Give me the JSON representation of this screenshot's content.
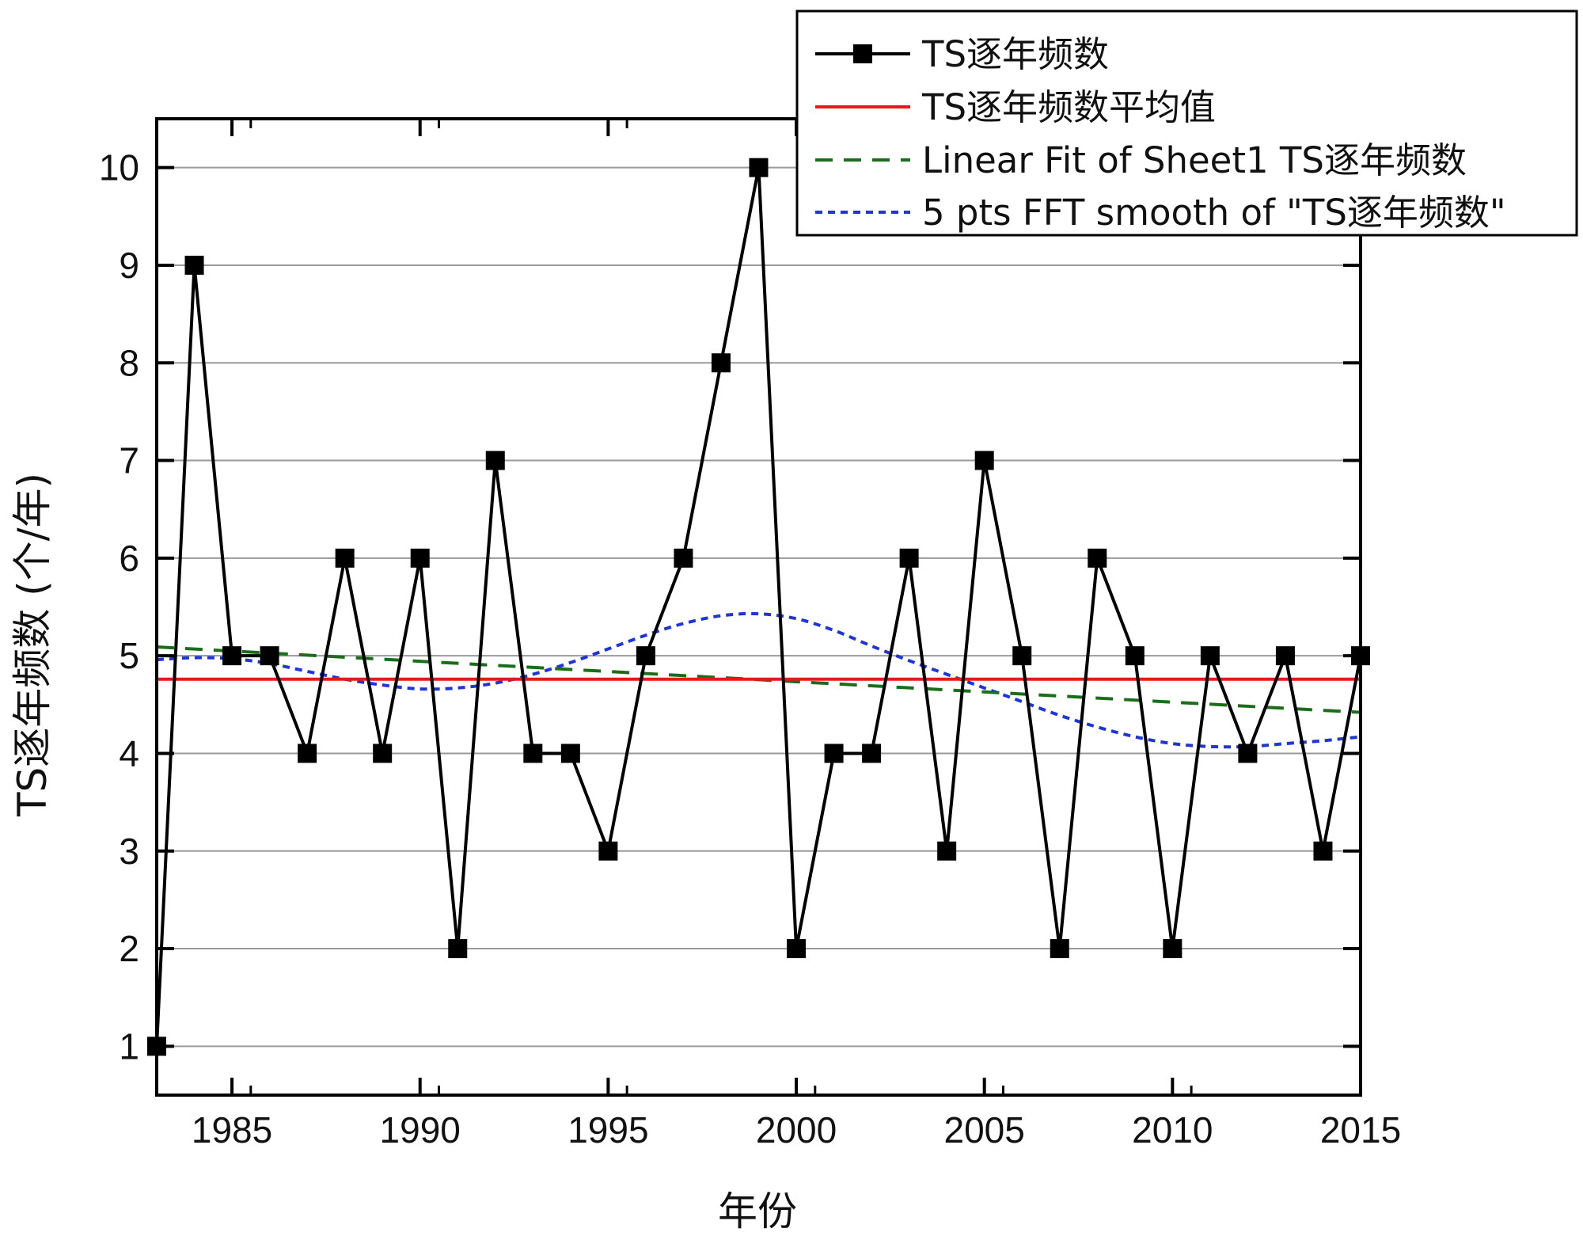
{
  "chart_data": {
    "type": "line",
    "title": "",
    "xlabel": "年份",
    "ylabel": "TS逐年频数 (个/年)",
    "xlim": [
      1983,
      2015
    ],
    "ylim": [
      0.5,
      10.5
    ],
    "xticks": [
      1985,
      1990,
      1995,
      2000,
      2005,
      2010,
      2015
    ],
    "xtick_labels": [
      "1985",
      "1990",
      "1995",
      "2000",
      "2005",
      "2010",
      "2015"
    ],
    "yticks": [
      1,
      2,
      3,
      4,
      5,
      6,
      7,
      8,
      9,
      10
    ],
    "ytick_labels": [
      "1",
      "2",
      "3",
      "4",
      "5",
      "6",
      "7",
      "8",
      "9",
      "10"
    ],
    "grid": "horizontal",
    "legend_position": "top-right",
    "series": [
      {
        "name": "TS逐年频数",
        "kind": "line-marker",
        "color": "#000000",
        "x": [
          1983,
          1984,
          1985,
          1986,
          1987,
          1988,
          1989,
          1990,
          1991,
          1992,
          1993,
          1994,
          1995,
          1996,
          1997,
          1998,
          1999,
          2000,
          2001,
          2002,
          2003,
          2004,
          2005,
          2006,
          2007,
          2008,
          2009,
          2010,
          2011,
          2012,
          2013,
          2014,
          2015
        ],
        "values": [
          1,
          9,
          5,
          5,
          4,
          6,
          4,
          6,
          2,
          7,
          4,
          4,
          3,
          5,
          6,
          8,
          10,
          2,
          4,
          4,
          6,
          3,
          7,
          5,
          2,
          6,
          5,
          2,
          5,
          4,
          5,
          3,
          5
        ]
      },
      {
        "name": "TS逐年频数平均值",
        "kind": "hline",
        "color": "#e8191b",
        "value": 4.76
      },
      {
        "name": "Linear Fit of Sheet1 TS逐年频数",
        "kind": "dashed",
        "color": "#1a6e1a",
        "x": [
          1983,
          2015
        ],
        "values": [
          5.09,
          4.42
        ]
      },
      {
        "name": "5 pts FFT smooth of \"TS逐年频数\"",
        "kind": "dotted",
        "color": "#1f35d9",
        "x": [
          1983,
          1984,
          1985,
          1986,
          1987,
          1988,
          1989,
          1990,
          1991,
          1992,
          1993,
          1994,
          1995,
          1996,
          1997,
          1998,
          1999,
          2000,
          2001,
          2002,
          2003,
          2004,
          2005,
          2006,
          2007,
          2008,
          2009,
          2010,
          2011,
          2012,
          2013,
          2014,
          2015
        ],
        "values": [
          4.96,
          4.98,
          4.97,
          4.92,
          4.84,
          4.76,
          4.7,
          4.66,
          4.67,
          4.72,
          4.81,
          4.93,
          5.07,
          5.21,
          5.33,
          5.41,
          5.43,
          5.38,
          5.26,
          5.1,
          4.95,
          4.81,
          4.67,
          4.53,
          4.39,
          4.27,
          4.17,
          4.1,
          4.07,
          4.07,
          4.1,
          4.13,
          4.17
        ]
      }
    ]
  }
}
